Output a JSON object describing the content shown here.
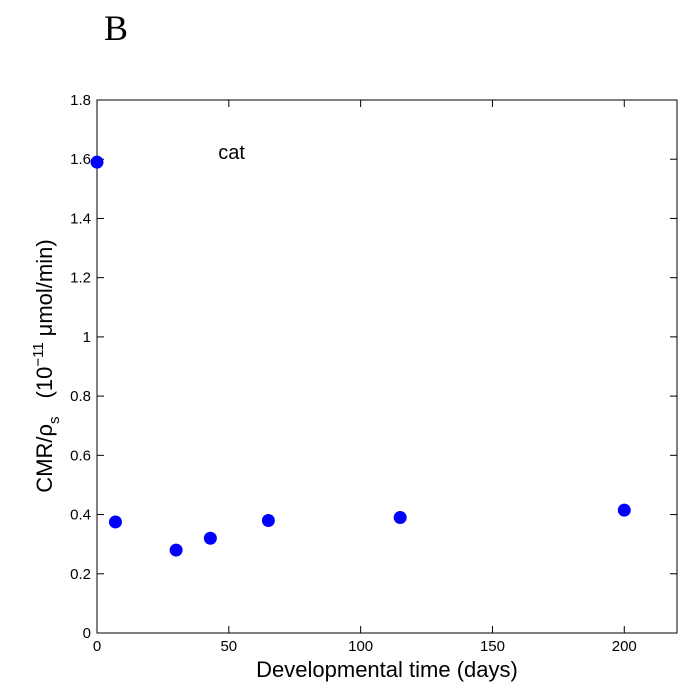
{
  "chart_data": {
    "type": "scatter",
    "panel_label": "B",
    "xlabel": "Developmental time (days)",
    "ylabel": {
      "main": "CMR/ρ",
      "sub": "s",
      "unit_open": "(10",
      "exp": "−11",
      "unit_rest": "μmol/min)"
    },
    "annotation": {
      "text": "cat",
      "x": 46,
      "y": 1.6
    },
    "series": [
      {
        "color": "#0000ff",
        "x": [
          0,
          7,
          30,
          43,
          65,
          115,
          200
        ],
        "values": [
          1.59,
          0.375,
          0.28,
          0.32,
          0.38,
          0.39,
          0.415
        ]
      }
    ],
    "xlim": [
      0,
      220
    ],
    "ylim": [
      0,
      1.8
    ],
    "xticks": [
      0,
      50,
      100,
      150,
      200
    ],
    "yticks": [
      0,
      0.2,
      0.4,
      0.6,
      0.8,
      1,
      1.2,
      1.4,
      1.6,
      1.8
    ],
    "grid": false
  }
}
